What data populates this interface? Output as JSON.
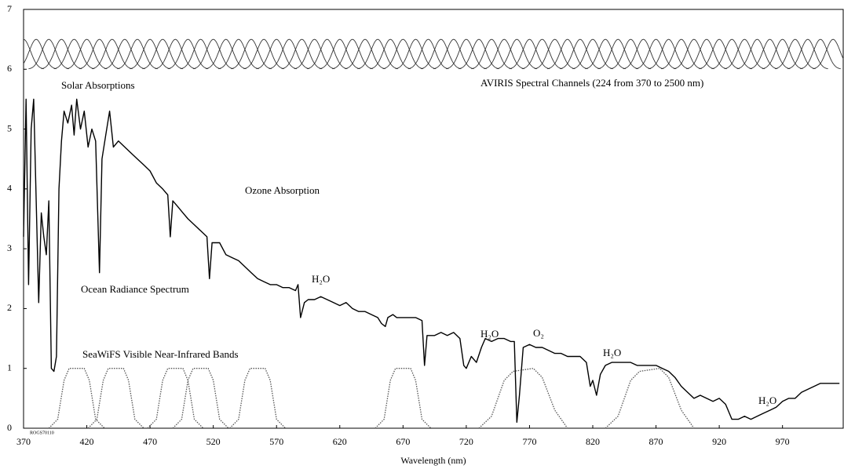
{
  "chart_data": {
    "type": "line",
    "xlabel": "Wavelength (nm)",
    "xlim": [
      370,
      1018
    ],
    "ylim": [
      0,
      7
    ],
    "xticks": [
      370,
      420,
      470,
      520,
      570,
      620,
      670,
      720,
      770,
      820,
      870,
      920,
      970
    ],
    "yticks": [
      0,
      1,
      2,
      3,
      4,
      5,
      6,
      7
    ],
    "annotations": [
      "Solar Absorptions",
      "AVIRIS Spectral Channels (224 from 370 to 2500 nm)",
      "Ozone Absorption",
      "H₂O",
      "Ocean Radiance Spectrum",
      "H₂O",
      "O₂",
      "SeaWiFS Visible Near-Infrared Bands",
      "H₂O",
      "H₂O",
      "ROGS70110"
    ],
    "series": [
      {
        "color": "#000000",
        "style": "solid",
        "x": [
          370,
          372,
          374,
          376,
          378,
          380,
          382,
          384,
          386,
          388,
          390,
          392,
          394,
          396,
          398,
          400,
          402,
          405,
          408,
          410,
          412,
          415,
          418,
          421,
          424,
          427,
          430,
          432,
          435,
          438,
          441,
          445,
          450,
          455,
          460,
          465,
          470,
          475,
          480,
          484,
          486,
          488,
          492,
          496,
          500,
          505,
          510,
          515,
          517,
          519,
          525,
          530,
          535,
          540,
          545,
          550,
          555,
          560,
          565,
          570,
          575,
          580,
          585,
          587,
          589,
          592,
          595,
          600,
          605,
          610,
          615,
          620,
          625,
          630,
          635,
          640,
          645,
          650,
          653,
          656,
          658,
          662,
          665,
          670,
          675,
          680,
          685,
          687,
          689,
          695,
          700,
          705,
          710,
          715,
          718,
          720,
          724,
          728,
          732,
          735,
          740,
          745,
          750,
          755,
          758,
          760,
          762,
          765,
          770,
          775,
          780,
          785,
          790,
          795,
          800,
          805,
          810,
          815,
          818,
          820,
          823,
          826,
          830,
          835,
          840,
          845,
          850,
          855,
          860,
          865,
          870,
          875,
          880,
          885,
          890,
          895,
          900,
          905,
          910,
          915,
          920,
          925,
          930,
          935,
          940,
          945,
          950,
          955,
          960,
          965,
          970,
          975,
          980,
          985,
          990,
          995,
          1000,
          1005,
          1010,
          1015
        ],
        "values": [
          3.2,
          5.5,
          2.4,
          5.0,
          5.5,
          3.8,
          2.1,
          3.6,
          3.2,
          2.9,
          3.8,
          1.0,
          0.95,
          1.2,
          4.0,
          4.8,
          5.3,
          5.1,
          5.4,
          4.9,
          5.5,
          5.0,
          5.3,
          4.7,
          5.0,
          4.8,
          2.6,
          4.5,
          4.9,
          5.3,
          4.7,
          4.8,
          4.7,
          4.6,
          4.5,
          4.4,
          4.3,
          4.1,
          4.0,
          3.9,
          3.2,
          3.8,
          3.7,
          3.6,
          3.5,
          3.4,
          3.3,
          3.2,
          2.5,
          3.1,
          3.1,
          2.9,
          2.85,
          2.8,
          2.7,
          2.6,
          2.5,
          2.45,
          2.4,
          2.4,
          2.35,
          2.35,
          2.3,
          2.4,
          1.85,
          2.1,
          2.15,
          2.15,
          2.2,
          2.15,
          2.1,
          2.05,
          2.1,
          2.0,
          1.95,
          1.95,
          1.9,
          1.85,
          1.75,
          1.7,
          1.85,
          1.9,
          1.85,
          1.85,
          1.85,
          1.85,
          1.8,
          1.05,
          1.55,
          1.55,
          1.6,
          1.55,
          1.6,
          1.5,
          1.05,
          1.0,
          1.2,
          1.1,
          1.35,
          1.5,
          1.45,
          1.5,
          1.5,
          1.45,
          1.45,
          0.1,
          0.55,
          1.35,
          1.4,
          1.35,
          1.35,
          1.3,
          1.25,
          1.25,
          1.2,
          1.2,
          1.2,
          1.1,
          0.7,
          0.8,
          0.55,
          0.9,
          1.05,
          1.1,
          1.1,
          1.1,
          1.1,
          1.05,
          1.05,
          1.05,
          1.05,
          1.0,
          0.95,
          0.85,
          0.7,
          0.6,
          0.5,
          0.55,
          0.5,
          0.45,
          0.5,
          0.4,
          0.15,
          0.15,
          0.2,
          0.15,
          0.2,
          0.25,
          0.3,
          0.35,
          0.45,
          0.5,
          0.5,
          0.6,
          0.65,
          0.7,
          0.75,
          0.75,
          0.75,
          0.75
        ]
      },
      {
        "color": "#555555",
        "style": "dotted",
        "x": [
          390,
          397,
          402,
          406,
          418,
          422,
          427,
          434
        ],
        "values": [
          0,
          0.15,
          0.8,
          1,
          1,
          0.8,
          0.15,
          0
        ]
      },
      {
        "color": "#555555",
        "style": "dotted",
        "x": [
          421,
          428,
          433,
          437,
          449,
          453,
          458,
          465
        ],
        "values": [
          0,
          0.15,
          0.8,
          1,
          1,
          0.8,
          0.15,
          0
        ]
      },
      {
        "color": "#555555",
        "style": "dotted",
        "x": [
          468,
          475,
          480,
          484,
          496,
          500,
          505,
          512
        ],
        "values": [
          0,
          0.15,
          0.8,
          1,
          1,
          0.8,
          0.15,
          0
        ]
      },
      {
        "color": "#555555",
        "style": "dotted",
        "x": [
          488,
          495,
          500,
          504,
          516,
          520,
          525,
          532
        ],
        "values": [
          0,
          0.15,
          0.8,
          1,
          1,
          0.8,
          0.15,
          0
        ]
      },
      {
        "color": "#555555",
        "style": "dotted",
        "x": [
          533,
          540,
          545,
          549,
          561,
          565,
          570,
          577
        ],
        "values": [
          0,
          0.15,
          0.8,
          1,
          1,
          0.8,
          0.15,
          0
        ]
      },
      {
        "color": "#555555",
        "style": "dotted",
        "x": [
          648,
          655,
          660,
          664,
          676,
          680,
          685,
          692
        ],
        "values": [
          0,
          0.15,
          0.8,
          1,
          1,
          0.8,
          0.15,
          0
        ]
      },
      {
        "color": "#555555",
        "style": "dotted",
        "x": [
          730,
          740,
          750,
          757,
          773,
          780,
          790,
          800
        ],
        "values": [
          0,
          0.2,
          0.8,
          0.95,
          1,
          0.85,
          0.3,
          0
        ]
      },
      {
        "color": "#555555",
        "style": "dotted",
        "x": [
          830,
          840,
          850,
          857,
          873,
          880,
          890,
          900
        ],
        "values": [
          0,
          0.2,
          0.8,
          0.95,
          1,
          0.85,
          0.3,
          0
        ]
      },
      {
        "color": "#333333",
        "style": "channels",
        "floor": 6,
        "x": [
          370,
          380,
          390,
          400,
          410,
          420,
          430,
          440,
          450,
          460,
          470,
          480,
          490,
          500,
          510,
          520,
          530,
          540,
          550,
          560,
          570,
          580,
          590,
          600,
          610,
          620,
          630,
          640,
          650,
          660,
          670,
          680,
          690,
          700,
          710,
          720,
          730,
          740,
          750,
          760,
          770,
          780,
          790,
          800,
          810,
          820,
          830,
          840,
          850,
          860,
          870,
          880,
          890,
          900,
          910,
          920,
          930,
          940,
          950,
          960,
          970,
          980,
          990,
          1000,
          1010
        ],
        "values": [
          6.5,
          6.5,
          6.5,
          6.5,
          6.5,
          6.5,
          6.5,
          6.5,
          6.5,
          6.5,
          6.5,
          6.5,
          6.5,
          6.5,
          6.5,
          6.5,
          6.5,
          6.5,
          6.5,
          6.5,
          6.5,
          6.5,
          6.5,
          6.5,
          6.5,
          6.5,
          6.5,
          6.5,
          6.5,
          6.5,
          6.5,
          6.5,
          6.5,
          6.5,
          6.5,
          6.5,
          6.5,
          6.5,
          6.5,
          6.5,
          6.5,
          6.5,
          6.5,
          6.5,
          6.5,
          6.5,
          6.5,
          6.5,
          6.5,
          6.5,
          6.5,
          6.5,
          6.5,
          6.5,
          6.5,
          6.5,
          6.5,
          6.5,
          6.5,
          6.5,
          6.5,
          6.5,
          6.5,
          6.5,
          6.5
        ]
      }
    ]
  }
}
